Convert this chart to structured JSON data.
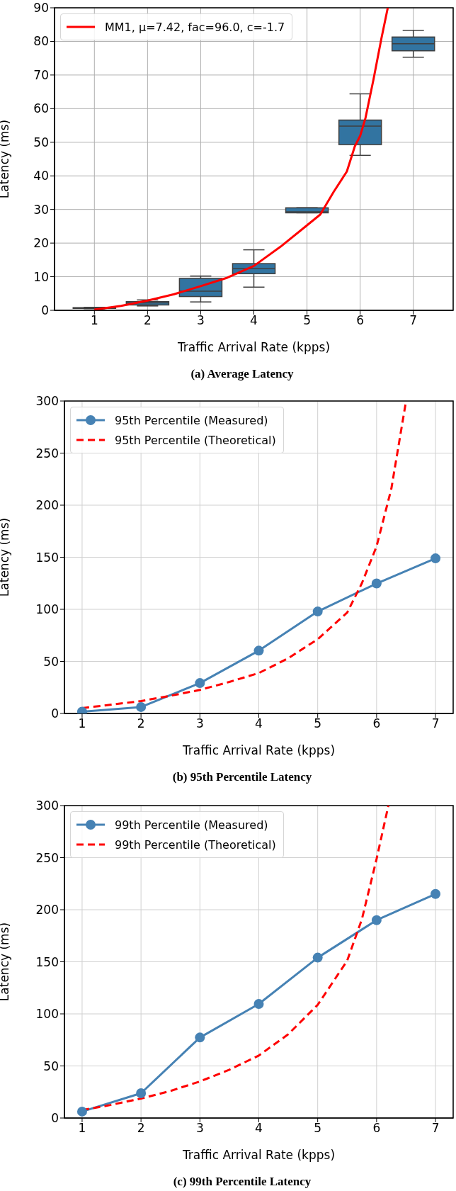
{
  "chart_data": [
    {
      "type": "box",
      "title": "(a) Average Latency",
      "xlabel": "Traffic Arrival Rate (kpps)",
      "ylabel": "Latency (ms)",
      "x": [
        1,
        2,
        3,
        4,
        5,
        6,
        7
      ],
      "xlim": [
        0.25,
        7.75
      ],
      "xticks": [
        1,
        2,
        3,
        4,
        5,
        6,
        7
      ],
      "ylim": [
        0,
        90
      ],
      "yticks": [
        0,
        10,
        20,
        30,
        40,
        50,
        60,
        70,
        80,
        90
      ],
      "grid": true,
      "legend": "top left",
      "series": [
        {
          "color": "#3274a1",
          "boxes": [
            {
              "low": 0.5,
              "q1": 0.6,
              "median": 0.7,
              "q3": 0.8,
              "high": 0.9
            },
            {
              "low": 1.3,
              "q1": 1.6,
              "median": 2.2,
              "q3": 2.6,
              "high": 3.1
            },
            {
              "low": 2.5,
              "q1": 4.1,
              "median": 5.7,
              "q3": 9.5,
              "high": 10.2
            },
            {
              "low": 6.9,
              "q1": 10.9,
              "median": 12.4,
              "q3": 13.9,
              "high": 18.0
            },
            {
              "low": 29.0,
              "q1": 29.0,
              "median": 29.3,
              "q3": 30.5,
              "high": 30.5
            },
            {
              "low": 46.1,
              "q1": 49.3,
              "median": 54.8,
              "q3": 56.6,
              "high": 64.4
            },
            {
              "low": 75.3,
              "q1": 77.2,
              "median": 79.3,
              "q3": 81.3,
              "high": 83.3
            }
          ]
        },
        {
          "type": "line",
          "name": "MM1, μ=7.42, fac=96.0, c=-1.7",
          "color": "#ff0000",
          "line_style": "solid",
          "marker": "none",
          "x": [
            1,
            1.5,
            2,
            2.5,
            3,
            3.5,
            4,
            4.5,
            5,
            5.25,
            5.5,
            5.75,
            5.9,
            6,
            6.1,
            6.25,
            6.4,
            6.52
          ],
          "values": [
            0.2,
            1.3,
            2.9,
            4.8,
            7.2,
            9.7,
            13.2,
            18.9,
            25.3,
            28.5,
            35.2,
            41.3,
            48.8,
            51.9,
            57.2,
            68.6,
            80.9,
            90
          ]
        }
      ]
    },
    {
      "type": "line",
      "title": "(b) 95th Percentile Latency",
      "xlabel": "Traffic Arrival Rate (kpps)",
      "ylabel": "Latency (ms)",
      "x": [
        1,
        2,
        3,
        4,
        5,
        6,
        7
      ],
      "xlim": [
        0.7,
        7.3
      ],
      "xticks": [
        1,
        2,
        3,
        4,
        5,
        6,
        7
      ],
      "ylim": [
        0,
        300
      ],
      "yticks": [
        0,
        50,
        100,
        150,
        200,
        250,
        300
      ],
      "grid": true,
      "legend": "top left",
      "series": [
        {
          "name": "95th Percentile (Measured)",
          "color": "#4682b4",
          "line_style": "solid",
          "marker": "circle",
          "values": [
            1.7,
            6.2,
            29.2,
            60.3,
            97.9,
            124.8,
            148.9
          ]
        },
        {
          "name": "95th Percentile (Theoretical)",
          "color": "#ff0000",
          "line_style": "dashed",
          "marker": "none",
          "x": [
            1,
            1.5,
            2,
            2.5,
            3,
            3.5,
            4,
            4.5,
            5,
            5.5,
            5.75,
            6,
            6.25,
            6.5
          ],
          "values": [
            5.1,
            8.5,
            11.9,
            17,
            22.6,
            30.3,
            38.8,
            53,
            71.3,
            96.8,
            125,
            160.5,
            215.7,
            300
          ]
        }
      ]
    },
    {
      "type": "line",
      "title": "(c) 99th Percentile Latency",
      "xlabel": "Traffic Arrival Rate (kpps)",
      "ylabel": "Latency (ms)",
      "x": [
        1,
        2,
        3,
        4,
        5,
        6,
        7
      ],
      "xlim": [
        0.7,
        7.3
      ],
      "xticks": [
        1,
        2,
        3,
        4,
        5,
        6,
        7
      ],
      "ylim": [
        0,
        300
      ],
      "yticks": [
        0,
        50,
        100,
        150,
        200,
        250,
        300
      ],
      "grid": true,
      "legend": "top left",
      "series": [
        {
          "name": "99th Percentile (Measured)",
          "color": "#4682b4",
          "line_style": "solid",
          "marker": "circle",
          "values": [
            6.2,
            23.8,
            77.3,
            109.5,
            154,
            190,
            215.1
          ]
        },
        {
          "name": "99th Percentile (Theoretical)",
          "color": "#ff0000",
          "line_style": "dashed",
          "marker": "none",
          "x": [
            1,
            1.5,
            2,
            2.5,
            3,
            3.5,
            4,
            4.5,
            5,
            5.5,
            5.75,
            6,
            6.2
          ],
          "values": [
            7.6,
            12.7,
            18.7,
            26,
            35.1,
            46.4,
            60,
            80.4,
            108.7,
            151,
            190.8,
            248.8,
            300
          ]
        }
      ]
    }
  ]
}
